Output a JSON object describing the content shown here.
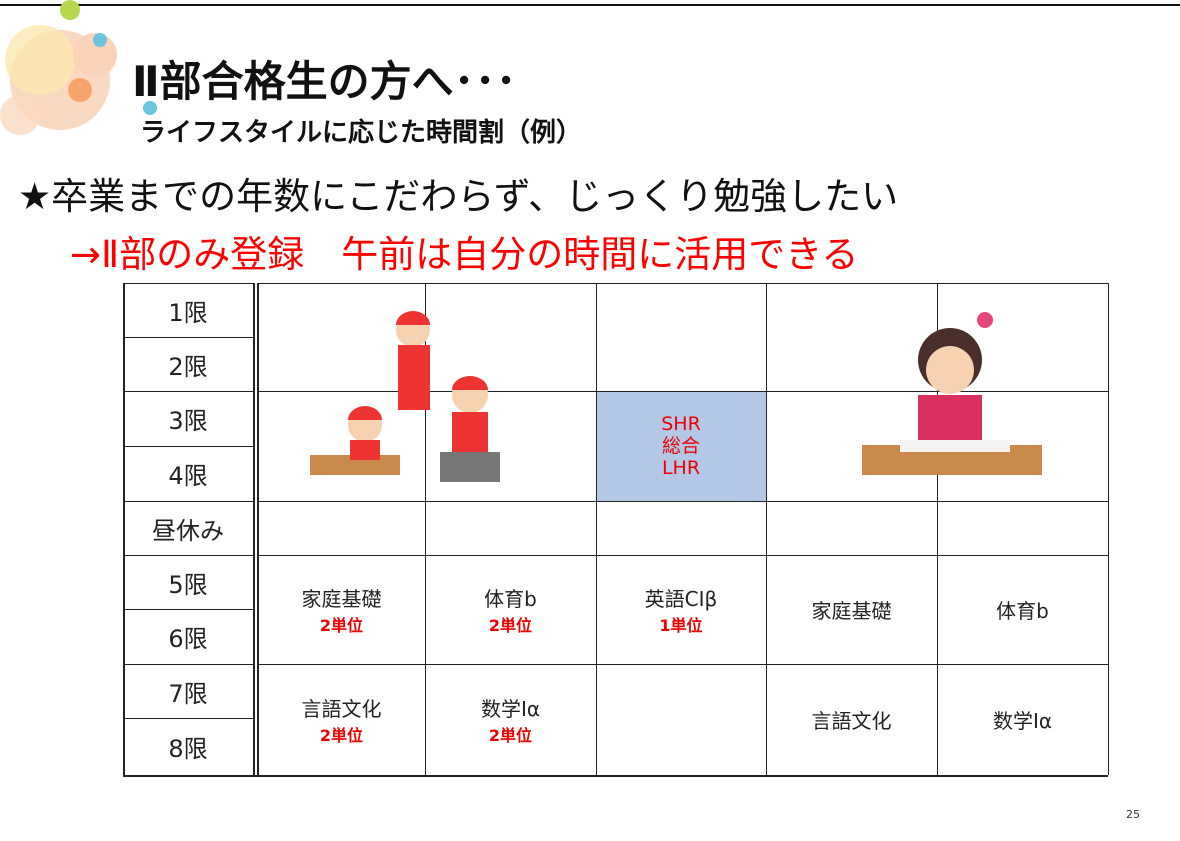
{
  "title": "Ⅱ部合格生の方へ･･･",
  "subtitle": "ライフスタイルに応じた時間割（例）",
  "headline": "★卒業までの年数にこだわらず、じっくり勉強したい",
  "highlight": "→Ⅱ部のみ登録　午前は自分の時間に活用できる",
  "table": {
    "periods": [
      "1限",
      "2限",
      "3限",
      "4限",
      "昼休み",
      "5限",
      "6限",
      "7限",
      "8限"
    ],
    "homeroom": [
      "SHR",
      "総合",
      "LHR"
    ],
    "block_5_6": [
      {
        "subject": "家庭基礎",
        "units": "2単位"
      },
      {
        "subject": "体育b",
        "units": "2単位"
      },
      {
        "subject": "英語CⅠβ",
        "units": "1単位"
      },
      {
        "subject": "家庭基礎"
      },
      {
        "subject": "体育b"
      }
    ],
    "block_7_8": [
      {
        "subject": "言語文化",
        "units": "2単位"
      },
      {
        "subject": "数学Ⅰα",
        "units": "2単位"
      },
      null,
      {
        "subject": "言語文化"
      },
      {
        "subject": "数学Ⅰα"
      }
    ]
  },
  "page_number": "25"
}
